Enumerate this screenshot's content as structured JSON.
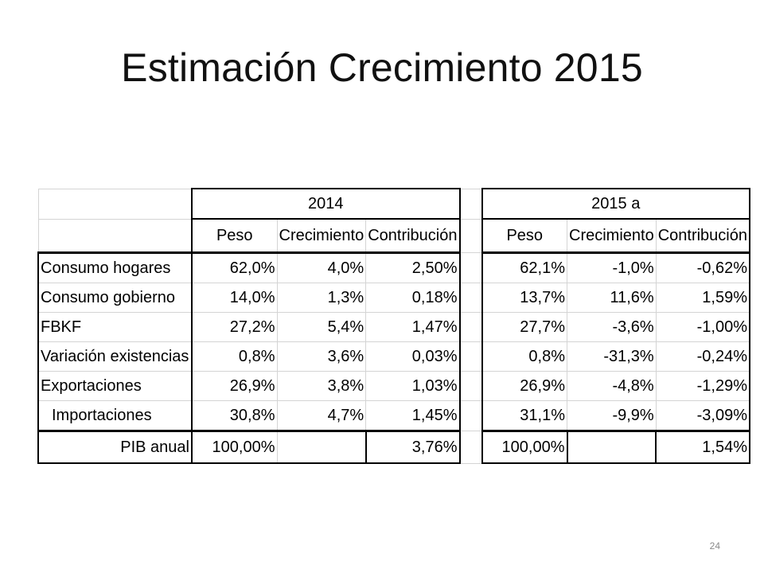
{
  "slide": {
    "title": "Estimación Crecimiento 2015",
    "page_number": "24"
  },
  "table": {
    "group_2014": "2014",
    "group_2015": "2015 a",
    "col_peso": "Peso",
    "col_crecimiento": "Crecimiento",
    "col_contribucion": "Contribución",
    "rows": [
      {
        "label": "Consumo hogares",
        "y2014": {
          "peso": "62,0%",
          "crec": "4,0%",
          "contr": "2,50%"
        },
        "y2015": {
          "peso": "62,1%",
          "crec": "-1,0%",
          "contr": "-0,62%"
        }
      },
      {
        "label": "Consumo gobierno",
        "y2014": {
          "peso": "14,0%",
          "crec": "1,3%",
          "contr": "0,18%"
        },
        "y2015": {
          "peso": "13,7%",
          "crec": "11,6%",
          "contr": "1,59%"
        }
      },
      {
        "label": "FBKF",
        "y2014": {
          "peso": "27,2%",
          "crec": "5,4%",
          "contr": "1,47%"
        },
        "y2015": {
          "peso": "27,7%",
          "crec": "-3,6%",
          "contr": "-1,00%"
        }
      },
      {
        "label": "Variación existencias",
        "y2014": {
          "peso": "0,8%",
          "crec": "3,6%",
          "contr": "0,03%"
        },
        "y2015": {
          "peso": "0,8%",
          "crec": "-31,3%",
          "contr": "-0,24%"
        }
      },
      {
        "label": "Exportaciones",
        "y2014": {
          "peso": "26,9%",
          "crec": "3,8%",
          "contr": "1,03%"
        },
        "y2015": {
          "peso": "26,9%",
          "crec": "-4,8%",
          "contr": "-1,29%"
        }
      },
      {
        "label": "Importaciones",
        "y2014": {
          "peso": "30,8%",
          "crec": "4,7%",
          "contr": "1,45%"
        },
        "y2015": {
          "peso": "31,1%",
          "crec": "-9,9%",
          "contr": "-3,09%"
        }
      }
    ],
    "total": {
      "label": "PIB anual",
      "y2014": {
        "peso": "100,00%",
        "crec": "",
        "contr": "3,76%"
      },
      "y2015": {
        "peso": "100,00%",
        "crec": "",
        "contr": "1,54%"
      }
    }
  }
}
